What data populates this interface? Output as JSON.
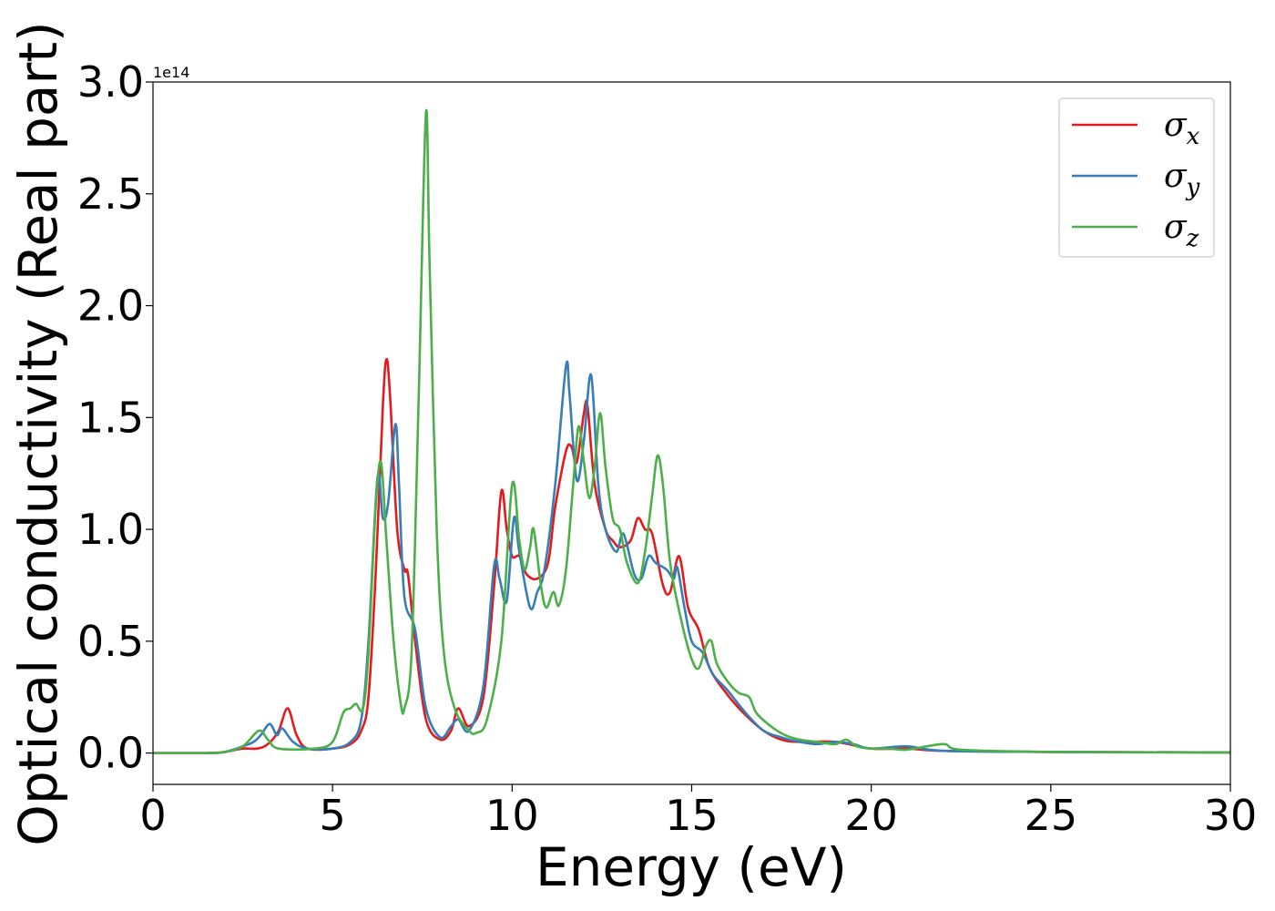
{
  "chart_data": {
    "type": "line",
    "title": "",
    "xlabel": "Energy (eV)",
    "ylabel": "Optical conductivity (Real part)",
    "y_offset_label": "1e14",
    "xlim": [
      0,
      30
    ],
    "ylim": [
      -0.14,
      3.0
    ],
    "x_ticks": [
      0,
      5,
      10,
      15,
      20,
      25,
      30
    ],
    "x_tick_labels": [
      "0",
      "5",
      "10",
      "15",
      "20",
      "25",
      "30"
    ],
    "y_ticks": [
      0.0,
      0.5,
      1.0,
      1.5,
      2.0,
      2.5,
      3.0
    ],
    "y_tick_labels": [
      "0.0",
      "0.5",
      "1.0",
      "1.5",
      "2.0",
      "2.5",
      "3.0"
    ],
    "grid": false,
    "legend_position": "top-right",
    "series": [
      {
        "name": "σx",
        "legend_symbol": "σ",
        "legend_subscript": "x",
        "color": "#e41a1c",
        "points": [
          [
            0,
            0
          ],
          [
            1.5,
            0
          ],
          [
            2.0,
            0.005
          ],
          [
            2.5,
            0.02
          ],
          [
            2.9,
            0.02
          ],
          [
            3.2,
            0.04
          ],
          [
            3.5,
            0.1
          ],
          [
            3.75,
            0.2
          ],
          [
            4.0,
            0.08
          ],
          [
            4.3,
            0.02
          ],
          [
            5.0,
            0.02
          ],
          [
            5.5,
            0.04
          ],
          [
            5.8,
            0.1
          ],
          [
            6.0,
            0.25
          ],
          [
            6.2,
            0.8
          ],
          [
            6.4,
            1.55
          ],
          [
            6.5,
            1.76
          ],
          [
            6.6,
            1.6
          ],
          [
            6.8,
            1.0
          ],
          [
            7.0,
            0.82
          ],
          [
            7.1,
            0.8
          ],
          [
            7.3,
            0.5
          ],
          [
            7.6,
            0.15
          ],
          [
            8.0,
            0.06
          ],
          [
            8.3,
            0.1
          ],
          [
            8.5,
            0.2
          ],
          [
            8.8,
            0.12
          ],
          [
            9.2,
            0.25
          ],
          [
            9.5,
            0.75
          ],
          [
            9.7,
            1.17
          ],
          [
            9.85,
            1.0
          ],
          [
            10.0,
            0.88
          ],
          [
            10.2,
            0.88
          ],
          [
            10.4,
            0.8
          ],
          [
            10.7,
            0.78
          ],
          [
            11.0,
            0.85
          ],
          [
            11.2,
            1.1
          ],
          [
            11.5,
            1.35
          ],
          [
            11.65,
            1.37
          ],
          [
            11.8,
            1.3
          ],
          [
            12.0,
            1.52
          ],
          [
            12.1,
            1.55
          ],
          [
            12.3,
            1.2
          ],
          [
            12.6,
            1.0
          ],
          [
            12.8,
            0.95
          ],
          [
            13.0,
            0.92
          ],
          [
            13.3,
            0.95
          ],
          [
            13.5,
            1.05
          ],
          [
            13.7,
            1.0
          ],
          [
            13.9,
            0.98
          ],
          [
            14.2,
            0.75
          ],
          [
            14.4,
            0.72
          ],
          [
            14.65,
            0.88
          ],
          [
            14.9,
            0.65
          ],
          [
            15.2,
            0.55
          ],
          [
            15.5,
            0.38
          ],
          [
            16.0,
            0.26
          ],
          [
            16.5,
            0.17
          ],
          [
            17.0,
            0.1
          ],
          [
            17.5,
            0.06
          ],
          [
            18.0,
            0.05
          ],
          [
            19.0,
            0.05
          ],
          [
            20.0,
            0.02
          ],
          [
            21.0,
            0.02
          ],
          [
            22.0,
            0.01
          ],
          [
            25.0,
            0.005
          ],
          [
            30.0,
            0.003
          ]
        ]
      },
      {
        "name": "σy",
        "legend_symbol": "σ",
        "legend_subscript": "y",
        "color": "#377eb8",
        "points": [
          [
            0,
            0
          ],
          [
            1.5,
            0
          ],
          [
            2.0,
            0.005
          ],
          [
            2.5,
            0.03
          ],
          [
            2.8,
            0.05
          ],
          [
            3.0,
            0.08
          ],
          [
            3.25,
            0.13
          ],
          [
            3.45,
            0.08
          ],
          [
            3.6,
            0.11
          ],
          [
            3.9,
            0.05
          ],
          [
            4.3,
            0.02
          ],
          [
            5.0,
            0.02
          ],
          [
            5.5,
            0.05
          ],
          [
            5.8,
            0.15
          ],
          [
            6.0,
            0.5
          ],
          [
            6.25,
            1.23
          ],
          [
            6.4,
            1.05
          ],
          [
            6.55,
            1.12
          ],
          [
            6.75,
            1.47
          ],
          [
            6.85,
            1.2
          ],
          [
            7.0,
            0.7
          ],
          [
            7.3,
            0.55
          ],
          [
            7.6,
            0.2
          ],
          [
            8.0,
            0.07
          ],
          [
            8.3,
            0.12
          ],
          [
            8.5,
            0.15
          ],
          [
            8.8,
            0.1
          ],
          [
            9.2,
            0.3
          ],
          [
            9.5,
            0.84
          ],
          [
            9.65,
            0.78
          ],
          [
            9.85,
            0.68
          ],
          [
            10.05,
            1.05
          ],
          [
            10.2,
            0.9
          ],
          [
            10.5,
            0.65
          ],
          [
            10.7,
            0.72
          ],
          [
            10.9,
            0.82
          ],
          [
            11.2,
            1.2
          ],
          [
            11.5,
            1.73
          ],
          [
            11.6,
            1.6
          ],
          [
            11.8,
            1.22
          ],
          [
            12.0,
            1.4
          ],
          [
            12.2,
            1.69
          ],
          [
            12.4,
            1.2
          ],
          [
            12.6,
            1.0
          ],
          [
            12.9,
            0.9
          ],
          [
            13.1,
            0.98
          ],
          [
            13.4,
            0.8
          ],
          [
            13.6,
            0.78
          ],
          [
            13.8,
            0.88
          ],
          [
            14.0,
            0.85
          ],
          [
            14.3,
            0.82
          ],
          [
            14.5,
            0.78
          ],
          [
            14.6,
            0.83
          ],
          [
            14.8,
            0.65
          ],
          [
            15.0,
            0.5
          ],
          [
            15.3,
            0.45
          ],
          [
            15.6,
            0.35
          ],
          [
            16.0,
            0.28
          ],
          [
            16.5,
            0.18
          ],
          [
            17.0,
            0.1
          ],
          [
            17.5,
            0.07
          ],
          [
            18.0,
            0.05
          ],
          [
            18.5,
            0.04
          ],
          [
            19.0,
            0.05
          ],
          [
            19.5,
            0.04
          ],
          [
            20.0,
            0.02
          ],
          [
            21.0,
            0.03
          ],
          [
            22.0,
            0.01
          ],
          [
            25.0,
            0.005
          ],
          [
            30.0,
            0.003
          ]
        ]
      },
      {
        "name": "σz",
        "legend_symbol": "σ",
        "legend_subscript": "z",
        "color": "#4daf4a",
        "points": [
          [
            0,
            0
          ],
          [
            1.5,
            0
          ],
          [
            2.0,
            0.005
          ],
          [
            2.5,
            0.03
          ],
          [
            2.95,
            0.1
          ],
          [
            3.2,
            0.06
          ],
          [
            3.5,
            0.02
          ],
          [
            4.5,
            0.02
          ],
          [
            5.0,
            0.05
          ],
          [
            5.3,
            0.18
          ],
          [
            5.5,
            0.2
          ],
          [
            5.65,
            0.22
          ],
          [
            5.85,
            0.2
          ],
          [
            6.0,
            0.45
          ],
          [
            6.2,
            1.1
          ],
          [
            6.35,
            1.3
          ],
          [
            6.5,
            0.95
          ],
          [
            6.7,
            0.5
          ],
          [
            6.9,
            0.22
          ],
          [
            7.0,
            0.2
          ],
          [
            7.2,
            0.45
          ],
          [
            7.4,
            1.6
          ],
          [
            7.6,
            2.86
          ],
          [
            7.7,
            2.2
          ],
          [
            7.9,
            1.0
          ],
          [
            8.1,
            0.45
          ],
          [
            8.4,
            0.2
          ],
          [
            8.8,
            0.1
          ],
          [
            9.0,
            0.09
          ],
          [
            9.3,
            0.15
          ],
          [
            9.7,
            0.5
          ],
          [
            10.0,
            1.2
          ],
          [
            10.2,
            0.95
          ],
          [
            10.35,
            0.82
          ],
          [
            10.5,
            0.92
          ],
          [
            10.6,
            1.0
          ],
          [
            10.8,
            0.75
          ],
          [
            10.95,
            0.65
          ],
          [
            11.15,
            0.72
          ],
          [
            11.3,
            0.66
          ],
          [
            11.5,
            0.82
          ],
          [
            11.7,
            1.2
          ],
          [
            11.85,
            1.46
          ],
          [
            12.0,
            1.3
          ],
          [
            12.15,
            1.14
          ],
          [
            12.3,
            1.28
          ],
          [
            12.45,
            1.52
          ],
          [
            12.6,
            1.28
          ],
          [
            12.8,
            1.05
          ],
          [
            13.0,
            1.0
          ],
          [
            13.2,
            0.85
          ],
          [
            13.5,
            0.76
          ],
          [
            13.7,
            0.9
          ],
          [
            13.9,
            1.15
          ],
          [
            14.05,
            1.33
          ],
          [
            14.2,
            1.2
          ],
          [
            14.4,
            0.85
          ],
          [
            14.7,
            0.6
          ],
          [
            15.0,
            0.42
          ],
          [
            15.2,
            0.38
          ],
          [
            15.4,
            0.48
          ],
          [
            15.55,
            0.5
          ],
          [
            15.7,
            0.4
          ],
          [
            16.0,
            0.32
          ],
          [
            16.3,
            0.27
          ],
          [
            16.6,
            0.25
          ],
          [
            16.8,
            0.18
          ],
          [
            17.2,
            0.12
          ],
          [
            17.6,
            0.08
          ],
          [
            18.0,
            0.06
          ],
          [
            18.5,
            0.05
          ],
          [
            19.0,
            0.04
          ],
          [
            19.3,
            0.06
          ],
          [
            19.6,
            0.03
          ],
          [
            20.0,
            0.02
          ],
          [
            20.5,
            0.02
          ],
          [
            21.0,
            0.015
          ],
          [
            22.0,
            0.04
          ],
          [
            22.5,
            0.015
          ],
          [
            25.0,
            0.005
          ],
          [
            30.0,
            0.003
          ]
        ]
      }
    ]
  }
}
